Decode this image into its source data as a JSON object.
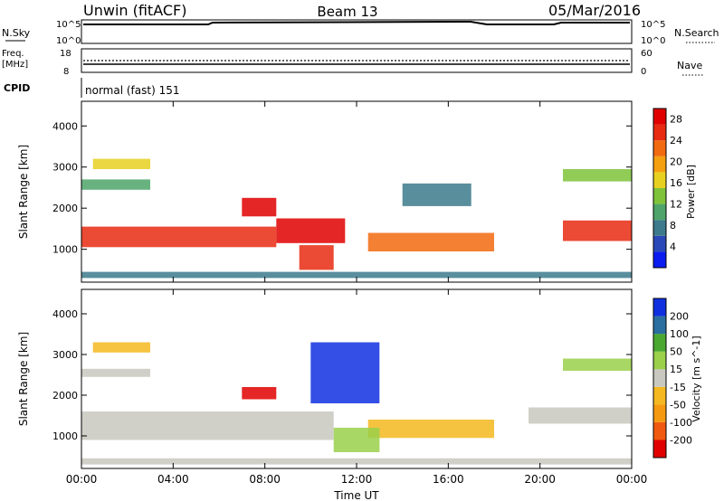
{
  "header": {
    "station": "Unwin (fitACF)",
    "beam": "Beam 13",
    "date": "05/Mar/2016"
  },
  "status_panels": {
    "nsky_label": "N.Sky",
    "nsky_ticks": [
      "10^5",
      "10^0"
    ],
    "nsearch_label": "N.Search",
    "nsearch_ticks": [
      "10^5",
      "10^0"
    ],
    "freq_label": "Freq.",
    "freq_unit": "[MHz]",
    "freq_ticks": [
      "18",
      "8"
    ],
    "nave_label": "Nave",
    "nave_ticks": [
      "60",
      "0"
    ],
    "cpid_label": "CPID",
    "cpid_value": "normal (fast) 151"
  },
  "colors": {
    "gray": "#c8c8c0",
    "power_scale": [
      "#0a1cf0",
      "#2a48b8",
      "#3c7a8c",
      "#4ea46a",
      "#7ec33a",
      "#e8d020",
      "#f5a011",
      "#f26a10",
      "#e82a10",
      "#e00000"
    ],
    "velocity_scale": [
      "#e00000",
      "#f05a10",
      "#f59a10",
      "#f5b820",
      "#c8c8c0",
      "#9ad04a",
      "#4aa830",
      "#2a6fa0",
      "#1030e0"
    ]
  },
  "chart_data": [
    {
      "type": "heatmap",
      "title": "",
      "xlabel": "",
      "ylabel": "Slant Range [km]",
      "x_ticks": [
        "00:00",
        "04:00",
        "08:00",
        "12:00",
        "16:00",
        "20:00",
        "00:00"
      ],
      "y_ticks": [
        "1000",
        "2000",
        "3000",
        "4000"
      ],
      "xlim_hours": [
        0,
        24
      ],
      "ylim_km": [
        200,
        4600
      ],
      "colorbar": {
        "label": "Power [dB]",
        "ticks": [
          "4",
          "8",
          "12",
          "16",
          "20",
          "24",
          "28"
        ],
        "range": [
          0,
          30
        ]
      },
      "regions": [
        {
          "t0": 0.0,
          "t1": 8.5,
          "r0": 1050,
          "r1": 1550,
          "value": 25
        },
        {
          "t0": 8.5,
          "t1": 11.5,
          "r0": 1150,
          "r1": 1750,
          "value": 27
        },
        {
          "t0": 0.0,
          "t1": 3.0,
          "r0": 2450,
          "r1": 2700,
          "value": 10
        },
        {
          "t0": 0.5,
          "t1": 3.0,
          "r0": 2950,
          "r1": 3200,
          "value": 15
        },
        {
          "t0": 7.0,
          "t1": 8.5,
          "r0": 1800,
          "r1": 2250,
          "value": 28
        },
        {
          "t0": 9.5,
          "t1": 11.0,
          "r0": 500,
          "r1": 1100,
          "value": 24
        },
        {
          "t0": 12.5,
          "t1": 18.0,
          "r0": 950,
          "r1": 1400,
          "value": 22
        },
        {
          "t0": 14.0,
          "t1": 17.0,
          "r0": 2050,
          "r1": 2600,
          "value": 8
        },
        {
          "t0": 21.0,
          "t1": 24.0,
          "r0": 1200,
          "r1": 1700,
          "value": 26
        },
        {
          "t0": 21.0,
          "t1": 24.0,
          "r0": 2650,
          "r1": 2950,
          "value": 14
        },
        {
          "t0": 0.0,
          "t1": 24.0,
          "r0": 300,
          "r1": 450,
          "value": 6
        }
      ]
    },
    {
      "type": "heatmap",
      "title": "",
      "xlabel": "Time UT",
      "ylabel": "Slant Range [km]",
      "x_ticks": [
        "00:00",
        "04:00",
        "08:00",
        "12:00",
        "16:00",
        "20:00",
        "00:00"
      ],
      "y_ticks": [
        "1000",
        "2000",
        "3000",
        "4000"
      ],
      "xlim_hours": [
        0,
        24
      ],
      "ylim_km": [
        200,
        4600
      ],
      "colorbar": {
        "label": "Velocity [m s^-1]",
        "ticks": [
          "200",
          "100",
          "50",
          "15",
          "-15",
          "-50",
          "-100",
          "-200"
        ],
        "range": [
          -250,
          250
        ]
      },
      "regions": [
        {
          "t0": 0.0,
          "t1": 11.0,
          "r0": 900,
          "r1": 1600,
          "value": 0
        },
        {
          "t0": 0.0,
          "t1": 3.0,
          "r0": 2450,
          "r1": 2650,
          "value": 0
        },
        {
          "t0": 0.5,
          "t1": 3.0,
          "r0": 3050,
          "r1": 3300,
          "value": -60
        },
        {
          "t0": 7.0,
          "t1": 8.5,
          "r0": 1900,
          "r1": 2200,
          "value": -220
        },
        {
          "t0": 10.0,
          "t1": 13.0,
          "r0": 1800,
          "r1": 3300,
          "value": 220
        },
        {
          "t0": 12.5,
          "t1": 18.0,
          "r0": 950,
          "r1": 1400,
          "value": -70
        },
        {
          "t0": 11.0,
          "t1": 13.0,
          "r0": 600,
          "r1": 1200,
          "value": 60
        },
        {
          "t0": 19.5,
          "t1": 24.0,
          "r0": 1300,
          "r1": 1700,
          "value": 0
        },
        {
          "t0": 21.0,
          "t1": 24.0,
          "r0": 2600,
          "r1": 2900,
          "value": 30
        },
        {
          "t0": 0.0,
          "t1": 24.0,
          "r0": 300,
          "r1": 450,
          "value": 0
        }
      ]
    }
  ]
}
